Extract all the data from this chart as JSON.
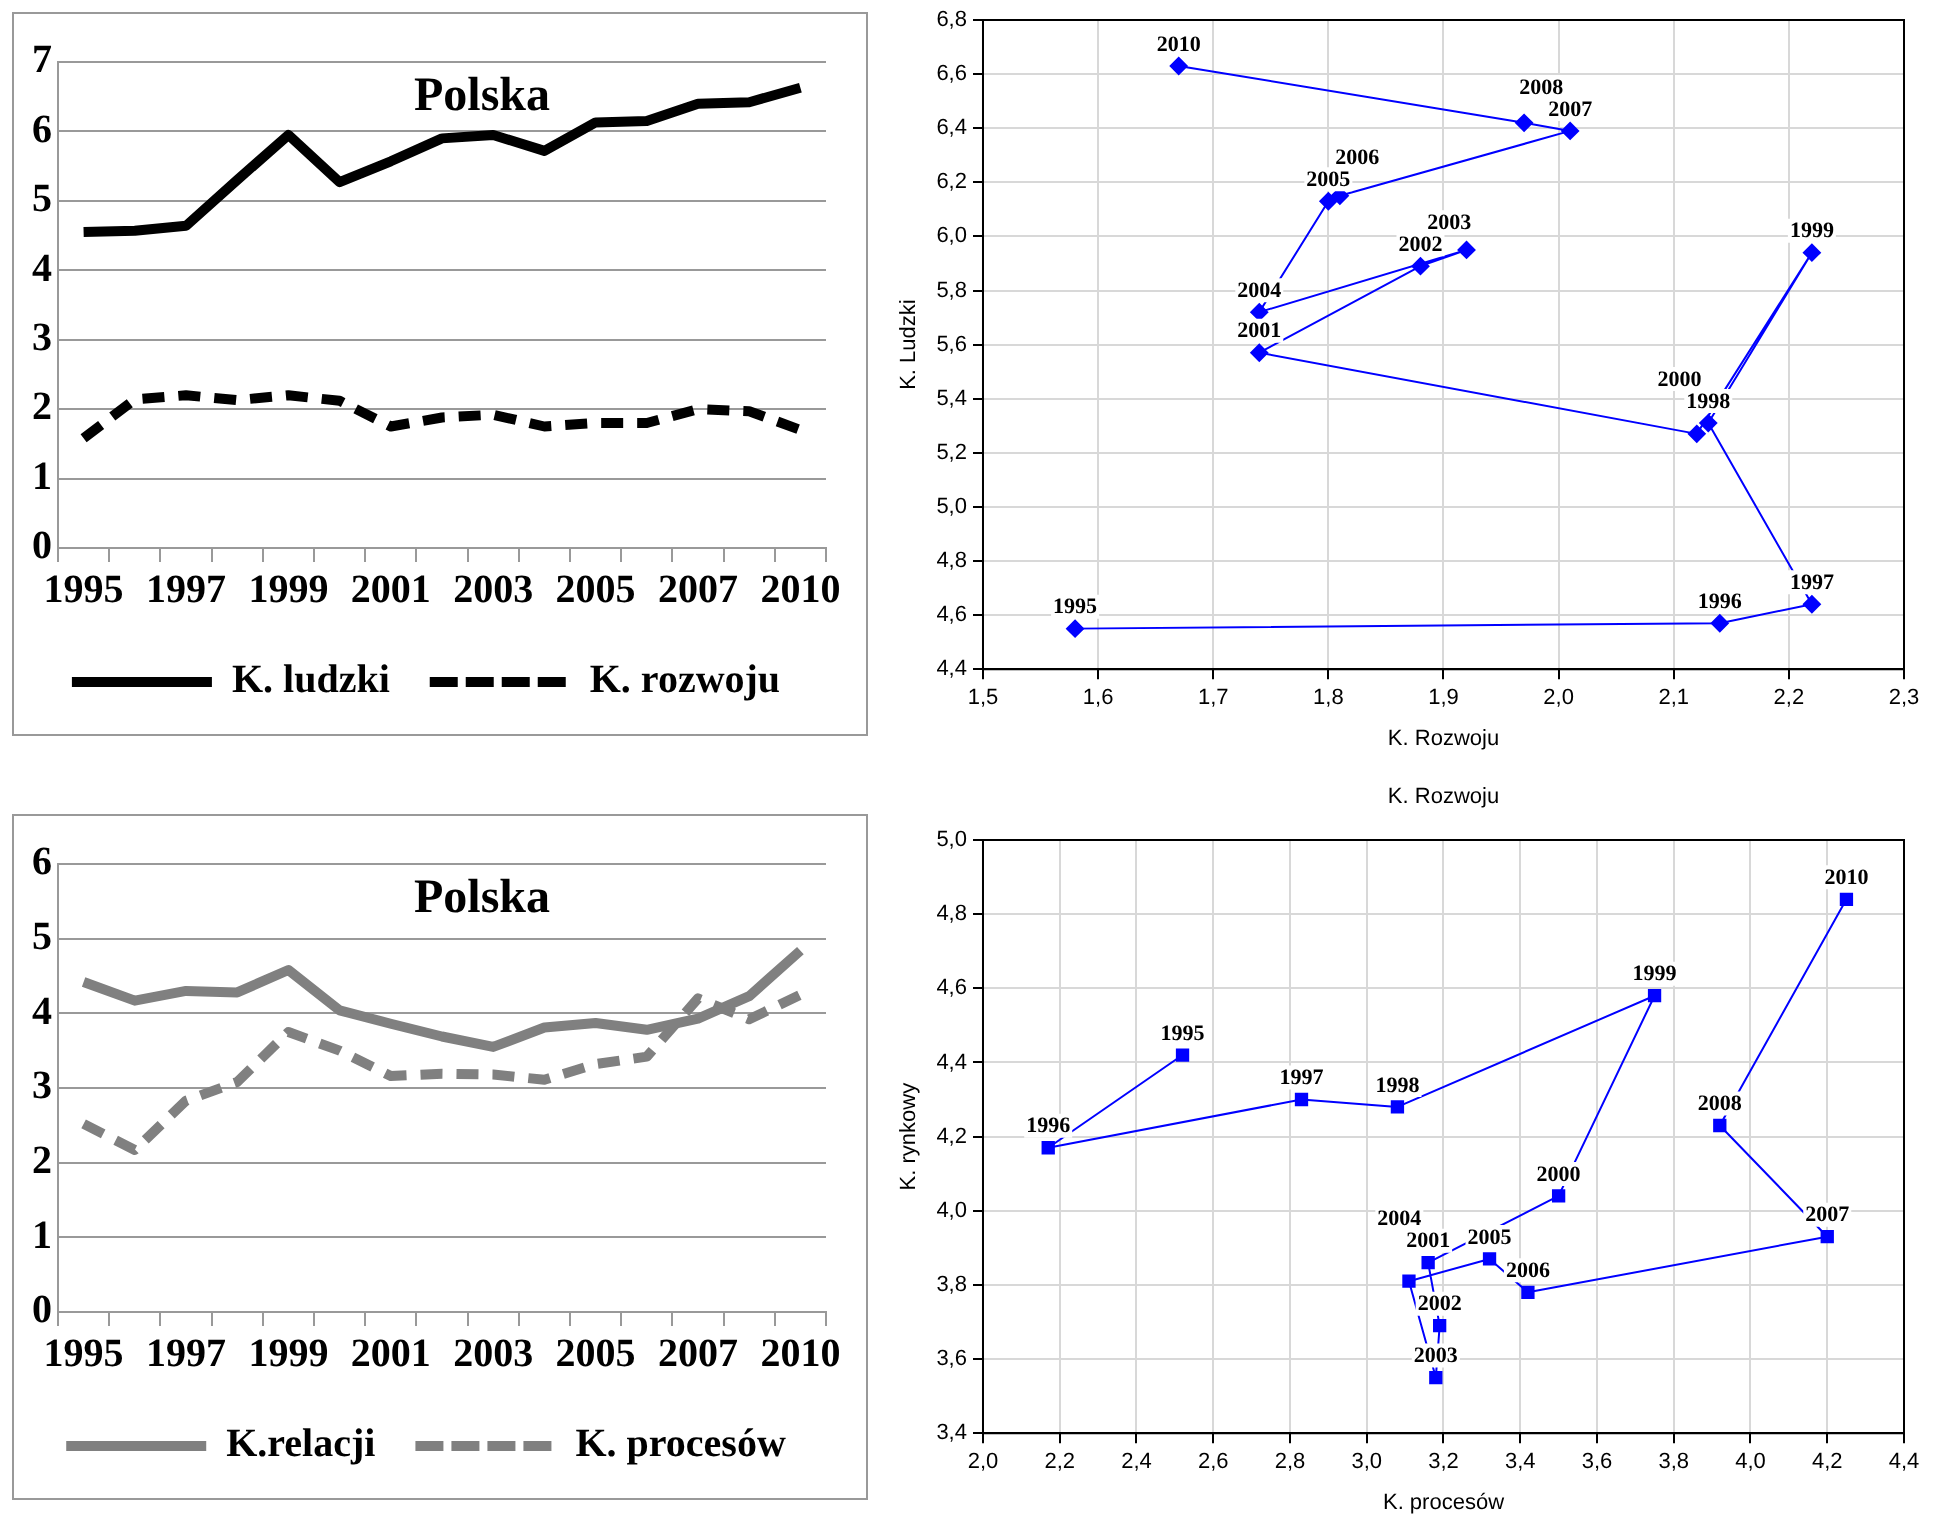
{
  "chart_data": [
    {
      "type": "line",
      "title": "Polska",
      "categories": [
        "1995",
        null,
        "1997",
        null,
        "1999",
        null,
        "2001",
        null,
        "2003",
        null,
        "2005",
        null,
        "2007",
        null,
        "2010"
      ],
      "series": [
        {
          "name": "K. ludzki",
          "color": "#000000",
          "line_style": "solid",
          "values": [
            4.55,
            4.57,
            4.64,
            5.3,
            5.95,
            5.27,
            5.57,
            5.9,
            5.95,
            5.72,
            6.13,
            6.15,
            6.4,
            6.42,
            6.63
          ]
        },
        {
          "name": "K. rozwoju",
          "color": "#000000",
          "line_style": "dashed",
          "values": [
            1.58,
            2.14,
            2.2,
            2.13,
            2.2,
            2.12,
            1.75,
            1.88,
            1.92,
            1.75,
            1.8,
            1.8,
            2.0,
            1.97,
            1.7
          ]
        }
      ],
      "ylim": [
        0,
        7
      ],
      "yticks": [
        0,
        1,
        2,
        3,
        4,
        5,
        6,
        7
      ],
      "grid": "y",
      "legend": "bottom",
      "marker": "none"
    },
    {
      "type": "line",
      "xlabel": "K. Rozwoju",
      "ylabel": "K. Ludzki",
      "series": [
        {
          "color": "#0000ff",
          "x": [
            1.58,
            2.14,
            2.22,
            2.13,
            2.22,
            2.12,
            1.74,
            1.88,
            1.92,
            1.74,
            1.8,
            1.81,
            2.01,
            1.97,
            1.67
          ],
          "values": [
            4.55,
            4.57,
            4.64,
            5.31,
            5.94,
            5.27,
            5.57,
            5.89,
            5.95,
            5.72,
            6.13,
            6.15,
            6.39,
            6.42,
            6.63
          ]
        }
      ],
      "xlim": [
        1.5,
        2.3
      ],
      "xticks": [
        {
          "value": 1.5,
          "label": "1,5"
        },
        {
          "value": 1.6,
          "label": "1,6"
        },
        {
          "value": 1.7,
          "label": "1,7"
        },
        {
          "value": 1.8,
          "label": "1,8"
        },
        {
          "value": 1.9,
          "label": "1,9"
        },
        {
          "value": 2.0,
          "label": "2,0"
        },
        {
          "value": 2.1,
          "label": "2,1"
        },
        {
          "value": 2.2,
          "label": "2,2"
        },
        {
          "value": 2.3,
          "label": "2,3"
        }
      ],
      "ylim": [
        4.4,
        6.8
      ],
      "yticks": [
        {
          "value": 4.4,
          "label": "4,4"
        },
        {
          "value": 4.6,
          "label": "4,6"
        },
        {
          "value": 4.8,
          "label": "4,8"
        },
        {
          "value": 5.0,
          "label": "5,0"
        },
        {
          "value": 5.2,
          "label": "5,2"
        },
        {
          "value": 5.4,
          "label": "5,4"
        },
        {
          "value": 5.6,
          "label": "5,6"
        },
        {
          "value": 5.8,
          "label": "5,8"
        },
        {
          "value": 6.0,
          "label": "6,0"
        },
        {
          "value": 6.2,
          "label": "6,2"
        },
        {
          "value": 6.4,
          "label": "6,4"
        },
        {
          "value": 6.6,
          "label": "6,6"
        },
        {
          "value": 6.8,
          "label": "6,8"
        }
      ],
      "grid": true,
      "marker": "diamond",
      "line_style": "solid",
      "annotations": [
        {
          "text": "1995",
          "x": 1.58,
          "y": 4.55
        },
        {
          "text": "1996",
          "x": 2.14,
          "y": 4.57
        },
        {
          "text": "1997",
          "x": 2.22,
          "y": 4.64
        },
        {
          "text": "1998",
          "x": 2.13,
          "y": 5.31
        },
        {
          "text": "1999",
          "x": 2.22,
          "y": 5.94
        },
        {
          "text": "2000",
          "x": 2.12,
          "y": 5.27
        },
        {
          "text": "2001",
          "x": 1.74,
          "y": 5.57
        },
        {
          "text": "2002",
          "x": 1.88,
          "y": 5.89
        },
        {
          "text": "2003",
          "x": 1.92,
          "y": 5.95
        },
        {
          "text": "2004",
          "x": 1.74,
          "y": 5.72
        },
        {
          "text": "2005",
          "x": 1.8,
          "y": 6.13
        },
        {
          "text": "2006",
          "x": 1.81,
          "y": 6.15
        },
        {
          "text": "2007",
          "x": 2.01,
          "y": 6.39
        },
        {
          "text": "2008",
          "x": 1.97,
          "y": 6.42
        },
        {
          "text": "2010",
          "x": 1.67,
          "y": 6.63
        }
      ]
    },
    {
      "type": "line",
      "title": "Polska",
      "categories": [
        "1995",
        null,
        "1997",
        null,
        "1999",
        null,
        "2001",
        null,
        "2003",
        null,
        "2005",
        null,
        "2007",
        null,
        "2010"
      ],
      "series": [
        {
          "name": "K.relacji",
          "color": "#808080",
          "line_style": "solid",
          "values": [
            4.42,
            4.17,
            4.3,
            4.28,
            4.58,
            4.04,
            3.86,
            3.69,
            3.55,
            3.81,
            3.87,
            3.78,
            3.93,
            4.23,
            4.84
          ]
        },
        {
          "name": "K. procesów",
          "color": "#808080",
          "line_style": "dashed",
          "values": [
            2.52,
            2.17,
            2.83,
            3.08,
            3.75,
            3.5,
            3.16,
            3.19,
            3.18,
            3.11,
            3.32,
            3.42,
            4.2,
            3.92,
            4.25
          ]
        }
      ],
      "ylim": [
        0,
        6
      ],
      "yticks": [
        0,
        1,
        2,
        3,
        4,
        5,
        6
      ],
      "grid": "y",
      "legend": "bottom",
      "marker": "none"
    },
    {
      "type": "line",
      "title": "K. Rozwoju",
      "xlabel": "K. procesów",
      "ylabel": "K. rynkowy",
      "series": [
        {
          "color": "#0000ff",
          "x": [
            2.52,
            2.17,
            2.83,
            3.08,
            3.75,
            3.5,
            3.16,
            3.19,
            3.18,
            3.11,
            3.32,
            3.42,
            4.2,
            3.92,
            4.25
          ],
          "values": [
            4.42,
            4.17,
            4.3,
            4.28,
            4.58,
            4.04,
            3.86,
            3.69,
            3.55,
            3.81,
            3.87,
            3.78,
            3.93,
            4.23,
            4.84
          ]
        }
      ],
      "xlim": [
        2.0,
        4.4
      ],
      "xticks": [
        {
          "value": 2.0,
          "label": "2,0"
        },
        {
          "value": 2.2,
          "label": "2,2"
        },
        {
          "value": 2.4,
          "label": "2,4"
        },
        {
          "value": 2.6,
          "label": "2,6"
        },
        {
          "value": 2.8,
          "label": "2,8"
        },
        {
          "value": 3.0,
          "label": "3,0"
        },
        {
          "value": 3.2,
          "label": "3,2"
        },
        {
          "value": 3.4,
          "label": "3,4"
        },
        {
          "value": 3.6,
          "label": "3,6"
        },
        {
          "value": 3.8,
          "label": "3,8"
        },
        {
          "value": 4.0,
          "label": "4,0"
        },
        {
          "value": 4.2,
          "label": "4,2"
        },
        {
          "value": 4.4,
          "label": "4,4"
        }
      ],
      "ylim": [
        3.4,
        5.0
      ],
      "yticks": [
        {
          "value": 3.4,
          "label": "3,4"
        },
        {
          "value": 3.6,
          "label": "3,6"
        },
        {
          "value": 3.8,
          "label": "3,8"
        },
        {
          "value": 4.0,
          "label": "4,0"
        },
        {
          "value": 4.2,
          "label": "4,2"
        },
        {
          "value": 4.4,
          "label": "4,4"
        },
        {
          "value": 4.6,
          "label": "4,6"
        },
        {
          "value": 4.8,
          "label": "4,8"
        },
        {
          "value": 5.0,
          "label": "5,0"
        }
      ],
      "grid": true,
      "marker": "square",
      "line_style": "solid",
      "annotations": [
        {
          "text": "1995",
          "x": 2.52,
          "y": 4.42
        },
        {
          "text": "1996",
          "x": 2.17,
          "y": 4.17
        },
        {
          "text": "1997",
          "x": 2.83,
          "y": 4.3
        },
        {
          "text": "1998",
          "x": 3.08,
          "y": 4.28
        },
        {
          "text": "1999",
          "x": 3.75,
          "y": 4.58
        },
        {
          "text": "2000",
          "x": 3.5,
          "y": 4.04
        },
        {
          "text": "2001",
          "x": 3.16,
          "y": 3.86
        },
        {
          "text": "2002",
          "x": 3.19,
          "y": 3.69
        },
        {
          "text": "2003",
          "x": 3.18,
          "y": 3.55
        },
        {
          "text": "2004",
          "x": 3.11,
          "y": 3.81
        },
        {
          "text": "2005",
          "x": 3.32,
          "y": 3.87
        },
        {
          "text": "2006",
          "x": 3.42,
          "y": 3.78
        },
        {
          "text": "2007",
          "x": 4.2,
          "y": 3.93
        },
        {
          "text": "2008",
          "x": 3.92,
          "y": 4.23
        },
        {
          "text": "2010",
          "x": 4.25,
          "y": 4.84
        }
      ]
    }
  ]
}
